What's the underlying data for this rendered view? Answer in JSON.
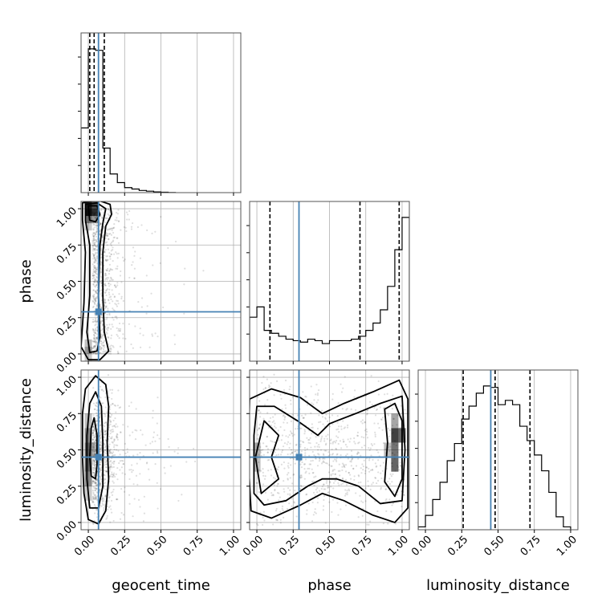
{
  "chart_data": {
    "type": "corner",
    "parameters": [
      "geocent_time",
      "phase",
      "luminosity_distance"
    ],
    "axis_labels": {
      "x": [
        "geocent_time",
        "phase",
        "luminosity_distance"
      ],
      "y": [
        "",
        "phase",
        "luminosity_distance"
      ]
    },
    "ticks": [
      0.0,
      0.25,
      0.5,
      0.75,
      1.0
    ],
    "tick_labels": [
      "0.00",
      "0.25",
      "0.50",
      "0.75",
      "1.00"
    ],
    "range": [
      -0.05,
      1.05
    ],
    "grid": true,
    "truth_color": "#4682b4",
    "truths": {
      "geocent_time": 0.07,
      "phase": 0.29,
      "luminosity_distance": 0.45
    },
    "quantiles": {
      "geocent_time": [
        0.01,
        0.04,
        0.11
      ],
      "phase": [
        0.09,
        0.71,
        0.98
      ],
      "luminosity_distance": [
        0.26,
        0.48,
        0.72
      ]
    },
    "histograms": {
      "geocent_time": {
        "bin_edges": [
          -0.05,
          0.0,
          0.05,
          0.1,
          0.15,
          0.2,
          0.25,
          0.3,
          0.35,
          0.4,
          0.45,
          0.5,
          0.55,
          0.6
        ],
        "values": [
          0.45,
          1.0,
          0.99,
          0.31,
          0.13,
          0.07,
          0.035,
          0.025,
          0.015,
          0.01,
          0.005,
          0.003,
          0.001
        ]
      },
      "phase": {
        "bin_edges": [
          -0.05,
          0.0,
          0.05,
          0.1,
          0.15,
          0.2,
          0.25,
          0.3,
          0.35,
          0.4,
          0.45,
          0.5,
          0.55,
          0.6,
          0.65,
          0.7,
          0.75,
          0.8,
          0.85,
          0.9,
          0.95,
          1.0,
          1.05
        ],
        "values": [
          0.3,
          0.37,
          0.21,
          0.19,
          0.17,
          0.15,
          0.14,
          0.13,
          0.15,
          0.14,
          0.12,
          0.14,
          0.14,
          0.14,
          0.15,
          0.17,
          0.21,
          0.26,
          0.35,
          0.51,
          0.76,
          0.98
        ]
      },
      "luminosity_distance": {
        "bin_edges": [
          -0.05,
          0.0,
          0.05,
          0.1,
          0.15,
          0.2,
          0.25,
          0.3,
          0.35,
          0.4,
          0.45,
          0.5,
          0.55,
          0.6,
          0.65,
          0.7,
          0.75,
          0.8,
          0.85,
          0.9,
          0.95,
          1.0
        ],
        "values": [
          0.02,
          0.1,
          0.21,
          0.33,
          0.48,
          0.6,
          0.77,
          0.86,
          0.95,
          1.0,
          0.99,
          0.87,
          0.9,
          0.87,
          0.72,
          0.62,
          0.52,
          0.41,
          0.26,
          0.09,
          0.02
        ]
      }
    },
    "contour_panels": [
      {
        "x": "geocent_time",
        "y": "phase",
        "contours": [
          [
            [
              -0.04,
              1.04
            ],
            [
              0.06,
              1.06
            ],
            [
              0.15,
              1.03
            ],
            [
              0.16,
              0.96
            ],
            [
              0.12,
              0.88
            ],
            [
              0.1,
              0.7
            ],
            [
              0.1,
              0.4
            ],
            [
              0.11,
              0.15
            ],
            [
              0.14,
              0.02
            ],
            [
              0.08,
              -0.04
            ],
            [
              0.0,
              -0.04
            ],
            [
              -0.05,
              0.05
            ],
            [
              -0.03,
              0.35
            ],
            [
              -0.02,
              0.7
            ],
            [
              -0.04,
              0.92
            ]
          ],
          [
            [
              -0.02,
              1.03
            ],
            [
              0.06,
              1.04
            ],
            [
              0.12,
              1.0
            ],
            [
              0.1,
              0.9
            ],
            [
              0.08,
              0.75
            ],
            [
              0.07,
              0.4
            ],
            [
              0.08,
              0.12
            ],
            [
              0.06,
              0.02
            ],
            [
              0.01,
              0.01
            ],
            [
              -0.01,
              0.15
            ],
            [
              0.01,
              0.4
            ],
            [
              0.01,
              0.75
            ],
            [
              -0.02,
              0.92
            ]
          ],
          [
            [
              0.0,
              1.02
            ],
            [
              0.06,
              1.02
            ],
            [
              0.08,
              0.96
            ],
            [
              0.05,
              0.91
            ],
            [
              0.01,
              0.92
            ]
          ]
        ]
      },
      {
        "x": "geocent_time",
        "y": "luminosity_distance",
        "contours": [
          [
            [
              0.05,
              1.01
            ],
            [
              0.12,
              0.95
            ],
            [
              0.14,
              0.8
            ],
            [
              0.13,
              0.55
            ],
            [
              0.14,
              0.3
            ],
            [
              0.12,
              0.08
            ],
            [
              0.07,
              -0.01
            ],
            [
              0.0,
              0.02
            ],
            [
              -0.03,
              0.2
            ],
            [
              -0.04,
              0.45
            ],
            [
              -0.04,
              0.75
            ],
            [
              -0.02,
              0.92
            ]
          ],
          [
            [
              0.05,
              0.9
            ],
            [
              0.09,
              0.8
            ],
            [
              0.1,
              0.55
            ],
            [
              0.1,
              0.25
            ],
            [
              0.07,
              0.1
            ],
            [
              0.01,
              0.1
            ],
            [
              -0.01,
              0.3
            ],
            [
              -0.01,
              0.6
            ],
            [
              0.01,
              0.82
            ]
          ],
          [
            [
              0.04,
              0.72
            ],
            [
              0.06,
              0.6
            ],
            [
              0.06,
              0.4
            ],
            [
              0.05,
              0.3
            ],
            [
              0.02,
              0.32
            ],
            [
              0.01,
              0.45
            ],
            [
              0.02,
              0.65
            ]
          ]
        ]
      },
      {
        "x": "phase",
        "y": "luminosity_distance",
        "contours": [
          [
            [
              -0.05,
              0.85
            ],
            [
              0.1,
              0.92
            ],
            [
              0.3,
              0.86
            ],
            [
              0.45,
              0.75
            ],
            [
              0.6,
              0.82
            ],
            [
              0.8,
              0.9
            ],
            [
              0.98,
              0.98
            ],
            [
              1.04,
              0.85
            ],
            [
              1.04,
              0.1
            ],
            [
              0.95,
              0.0
            ],
            [
              0.8,
              0.05
            ],
            [
              0.6,
              0.15
            ],
            [
              0.45,
              0.2
            ],
            [
              0.3,
              0.12
            ],
            [
              0.1,
              0.03
            ],
            [
              -0.04,
              0.08
            ],
            [
              -0.06,
              0.45
            ]
          ],
          [
            [
              0.0,
              0.8
            ],
            [
              0.12,
              0.8
            ],
            [
              0.28,
              0.7
            ],
            [
              0.42,
              0.6
            ],
            [
              0.5,
              0.68
            ],
            [
              0.55,
              0.7
            ],
            [
              0.68,
              0.75
            ],
            [
              0.85,
              0.82
            ],
            [
              1.0,
              0.87
            ],
            [
              1.02,
              0.5
            ],
            [
              1.0,
              0.15
            ],
            [
              0.85,
              0.13
            ],
            [
              0.7,
              0.25
            ],
            [
              0.55,
              0.3
            ],
            [
              0.45,
              0.3
            ],
            [
              0.35,
              0.25
            ],
            [
              0.2,
              0.15
            ],
            [
              0.05,
              0.12
            ],
            [
              -0.02,
              0.2
            ],
            [
              -0.02,
              0.6
            ]
          ],
          [
            [
              0.05,
              0.7
            ],
            [
              0.15,
              0.6
            ],
            [
              0.1,
              0.45
            ],
            [
              0.15,
              0.3
            ],
            [
              0.03,
              0.2
            ],
            [
              -0.01,
              0.45
            ]
          ],
          [
            [
              0.88,
              0.78
            ],
            [
              0.95,
              0.82
            ],
            [
              1.0,
              0.7
            ],
            [
              1.0,
              0.3
            ],
            [
              0.95,
              0.18
            ],
            [
              0.88,
              0.28
            ],
            [
              0.9,
              0.55
            ]
          ]
        ]
      }
    ],
    "density_blocks": [
      {
        "x": "geocent_time",
        "y": "phase",
        "cells": [
          [
            0.0,
            1.0,
            0.9
          ],
          [
            0.05,
            1.0,
            0.7
          ],
          [
            0.0,
            0.95,
            0.45
          ],
          [
            0.05,
            0.95,
            0.4
          ],
          [
            0.0,
            0.9,
            0.2
          ],
          [
            0.0,
            0.05,
            0.25
          ],
          [
            0.0,
            0.0,
            0.2
          ]
        ]
      },
      {
        "x": "geocent_time",
        "y": "luminosity_distance",
        "cells": [
          [
            0.0,
            0.6,
            0.45
          ],
          [
            0.0,
            0.5,
            0.6
          ],
          [
            0.0,
            0.4,
            0.6
          ],
          [
            0.0,
            0.3,
            0.45
          ],
          [
            0.0,
            0.7,
            0.25
          ],
          [
            0.05,
            0.5,
            0.3
          ],
          [
            0.0,
            0.2,
            0.2
          ]
        ]
      },
      {
        "x": "phase",
        "y": "luminosity_distance",
        "cells": [
          [
            0.95,
            0.6,
            0.75
          ],
          [
            1.0,
            0.6,
            0.6
          ],
          [
            0.95,
            0.5,
            0.55
          ],
          [
            0.95,
            0.4,
            0.6
          ],
          [
            0.95,
            0.7,
            0.35
          ],
          [
            0.0,
            0.5,
            0.3
          ],
          [
            0.0,
            0.4,
            0.25
          ],
          [
            0.9,
            0.5,
            0.25
          ]
        ]
      }
    ]
  }
}
